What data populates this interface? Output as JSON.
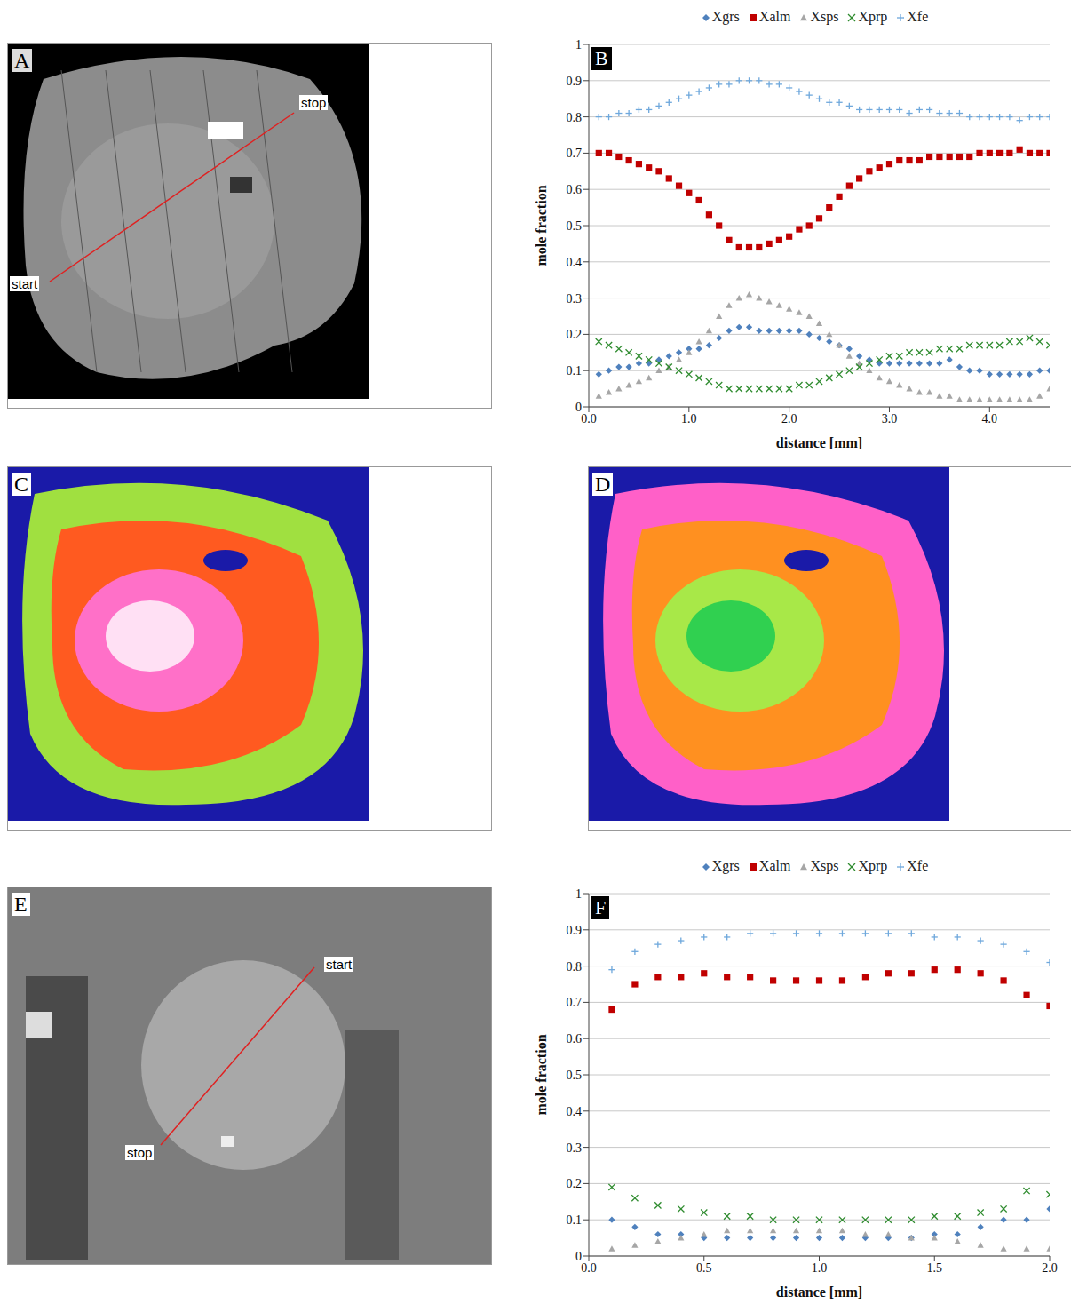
{
  "chart_data": [
    {
      "label": "B",
      "type": "scatter",
      "legend": "top",
      "grid": true,
      "xlabel": "distance [mm]",
      "ylabel": "mole fraction",
      "xlim": [
        0,
        4.6
      ],
      "xticks": [
        {
          "value": 0,
          "label": "0.0"
        },
        {
          "value": 1,
          "label": "1.0"
        },
        {
          "value": 2,
          "label": "2.0"
        },
        {
          "value": 3,
          "label": "3.0"
        },
        {
          "value": 4,
          "label": "4.0"
        }
      ],
      "ylim": [
        0,
        1
      ],
      "yticks": [
        0,
        0.1,
        0.2,
        0.3,
        0.4,
        0.5,
        0.6,
        0.7,
        0.8,
        0.9,
        1
      ],
      "x": [
        0.1,
        0.2,
        0.3,
        0.4,
        0.5,
        0.6,
        0.7,
        0.8,
        0.9,
        1.0,
        1.1,
        1.2,
        1.3,
        1.4,
        1.5,
        1.6,
        1.7,
        1.8,
        1.9,
        2.0,
        2.1,
        2.2,
        2.3,
        2.4,
        2.5,
        2.6,
        2.7,
        2.8,
        2.9,
        3.0,
        3.1,
        3.2,
        3.3,
        3.4,
        3.5,
        3.6,
        3.7,
        3.8,
        3.9,
        4.0,
        4.1,
        4.2,
        4.3,
        4.4,
        4.5,
        4.6
      ],
      "series": [
        {
          "name": "Xgrs",
          "color": "#4f81bd",
          "marker": "diamond",
          "values": [
            0.09,
            0.1,
            0.11,
            0.11,
            0.12,
            0.12,
            0.13,
            0.14,
            0.15,
            0.16,
            0.16,
            0.17,
            0.19,
            0.21,
            0.22,
            0.22,
            0.21,
            0.21,
            0.21,
            0.21,
            0.21,
            0.2,
            0.19,
            0.18,
            0.17,
            0.16,
            0.14,
            0.13,
            0.12,
            0.12,
            0.12,
            0.12,
            0.12,
            0.12,
            0.12,
            0.13,
            0.11,
            0.1,
            0.1,
            0.09,
            0.09,
            0.09,
            0.09,
            0.09,
            0.1,
            0.1
          ]
        },
        {
          "name": "Xalm",
          "color": "#c00000",
          "marker": "square",
          "values": [
            0.7,
            0.7,
            0.69,
            0.68,
            0.67,
            0.66,
            0.65,
            0.63,
            0.61,
            0.59,
            0.57,
            0.53,
            0.5,
            0.46,
            0.44,
            0.44,
            0.44,
            0.45,
            0.46,
            0.47,
            0.49,
            0.5,
            0.52,
            0.55,
            0.58,
            0.61,
            0.63,
            0.65,
            0.66,
            0.67,
            0.68,
            0.68,
            0.68,
            0.69,
            0.69,
            0.69,
            0.69,
            0.69,
            0.7,
            0.7,
            0.7,
            0.7,
            0.71,
            0.7,
            0.7,
            0.7
          ]
        },
        {
          "name": "Xsps",
          "color": "#a6a6a6",
          "marker": "triangle",
          "values": [
            0.03,
            0.04,
            0.05,
            0.06,
            0.07,
            0.08,
            0.1,
            0.11,
            0.13,
            0.15,
            0.18,
            0.21,
            0.25,
            0.28,
            0.3,
            0.31,
            0.3,
            0.29,
            0.28,
            0.27,
            0.26,
            0.25,
            0.23,
            0.2,
            0.17,
            0.14,
            0.12,
            0.1,
            0.08,
            0.07,
            0.06,
            0.05,
            0.04,
            0.04,
            0.03,
            0.03,
            0.02,
            0.02,
            0.02,
            0.02,
            0.02,
            0.02,
            0.02,
            0.02,
            0.03,
            0.05
          ]
        },
        {
          "name": "Xprp",
          "color": "#2e8b2e",
          "marker": "x",
          "values": [
            0.18,
            0.17,
            0.16,
            0.15,
            0.14,
            0.13,
            0.12,
            0.11,
            0.1,
            0.09,
            0.08,
            0.07,
            0.06,
            0.05,
            0.05,
            0.05,
            0.05,
            0.05,
            0.05,
            0.05,
            0.06,
            0.06,
            0.07,
            0.08,
            0.09,
            0.1,
            0.11,
            0.12,
            0.13,
            0.14,
            0.14,
            0.15,
            0.15,
            0.15,
            0.16,
            0.16,
            0.16,
            0.17,
            0.17,
            0.17,
            0.17,
            0.18,
            0.18,
            0.19,
            0.18,
            0.17
          ]
        },
        {
          "name": "Xfe",
          "color": "#6fa8dc",
          "marker": "plus",
          "values": [
            0.8,
            0.8,
            0.81,
            0.81,
            0.82,
            0.82,
            0.83,
            0.84,
            0.85,
            0.86,
            0.87,
            0.88,
            0.89,
            0.89,
            0.9,
            0.9,
            0.9,
            0.89,
            0.89,
            0.88,
            0.87,
            0.86,
            0.85,
            0.84,
            0.84,
            0.83,
            0.82,
            0.82,
            0.82,
            0.82,
            0.82,
            0.81,
            0.82,
            0.82,
            0.81,
            0.81,
            0.81,
            0.8,
            0.8,
            0.8,
            0.8,
            0.8,
            0.79,
            0.8,
            0.8,
            0.8
          ]
        }
      ]
    },
    {
      "label": "F",
      "type": "scatter",
      "legend": "top",
      "grid": true,
      "xlabel": "distance [mm]",
      "ylabel": "mole fraction",
      "xlim": [
        0,
        2
      ],
      "xticks": [
        {
          "value": 0,
          "label": "0.0"
        },
        {
          "value": 0.5,
          "label": "0.5"
        },
        {
          "value": 1,
          "label": "1.0"
        },
        {
          "value": 1.5,
          "label": "1.5"
        },
        {
          "value": 2,
          "label": "2.0"
        }
      ],
      "ylim": [
        0,
        1
      ],
      "yticks": [
        0,
        0.1,
        0.2,
        0.3,
        0.4,
        0.5,
        0.6,
        0.7,
        0.8,
        0.9,
        1
      ],
      "x": [
        0.1,
        0.2,
        0.3,
        0.4,
        0.5,
        0.6,
        0.7,
        0.8,
        0.9,
        1.0,
        1.1,
        1.2,
        1.3,
        1.4,
        1.5,
        1.6,
        1.7,
        1.8,
        1.9,
        2.0
      ],
      "series": [
        {
          "name": "Xgrs",
          "color": "#4f81bd",
          "marker": "diamond",
          "values": [
            0.1,
            0.08,
            0.06,
            0.06,
            0.05,
            0.05,
            0.05,
            0.05,
            0.05,
            0.05,
            0.05,
            0.05,
            0.05,
            0.05,
            0.06,
            0.06,
            0.08,
            0.1,
            0.1,
            0.13
          ]
        },
        {
          "name": "Xalm",
          "color": "#c00000",
          "marker": "square",
          "values": [
            0.68,
            0.75,
            0.77,
            0.77,
            0.78,
            0.77,
            0.77,
            0.76,
            0.76,
            0.76,
            0.76,
            0.77,
            0.78,
            0.78,
            0.79,
            0.79,
            0.78,
            0.76,
            0.72,
            0.69
          ]
        },
        {
          "name": "Xsps",
          "color": "#a6a6a6",
          "marker": "triangle",
          "values": [
            0.02,
            0.03,
            0.04,
            0.05,
            0.06,
            0.07,
            0.07,
            0.07,
            0.07,
            0.07,
            0.07,
            0.06,
            0.06,
            0.05,
            0.05,
            0.04,
            0.03,
            0.02,
            0.02,
            0.02
          ]
        },
        {
          "name": "Xprp",
          "color": "#2e8b2e",
          "marker": "x",
          "values": [
            0.19,
            0.16,
            0.14,
            0.13,
            0.12,
            0.11,
            0.11,
            0.1,
            0.1,
            0.1,
            0.1,
            0.1,
            0.1,
            0.1,
            0.11,
            0.11,
            0.12,
            0.13,
            0.18,
            0.17
          ]
        },
        {
          "name": "Xfe",
          "color": "#6fa8dc",
          "marker": "plus",
          "values": [
            0.79,
            0.84,
            0.86,
            0.87,
            0.88,
            0.88,
            0.89,
            0.89,
            0.89,
            0.89,
            0.89,
            0.89,
            0.89,
            0.89,
            0.88,
            0.88,
            0.87,
            0.86,
            0.84,
            0.81
          ]
        }
      ]
    }
  ],
  "images": [
    {
      "label": "A",
      "texts": [
        "start",
        "stop"
      ]
    },
    {
      "label": "C"
    },
    {
      "label": "D"
    },
    {
      "label": "E",
      "texts": [
        "start",
        "stop"
      ]
    }
  ]
}
